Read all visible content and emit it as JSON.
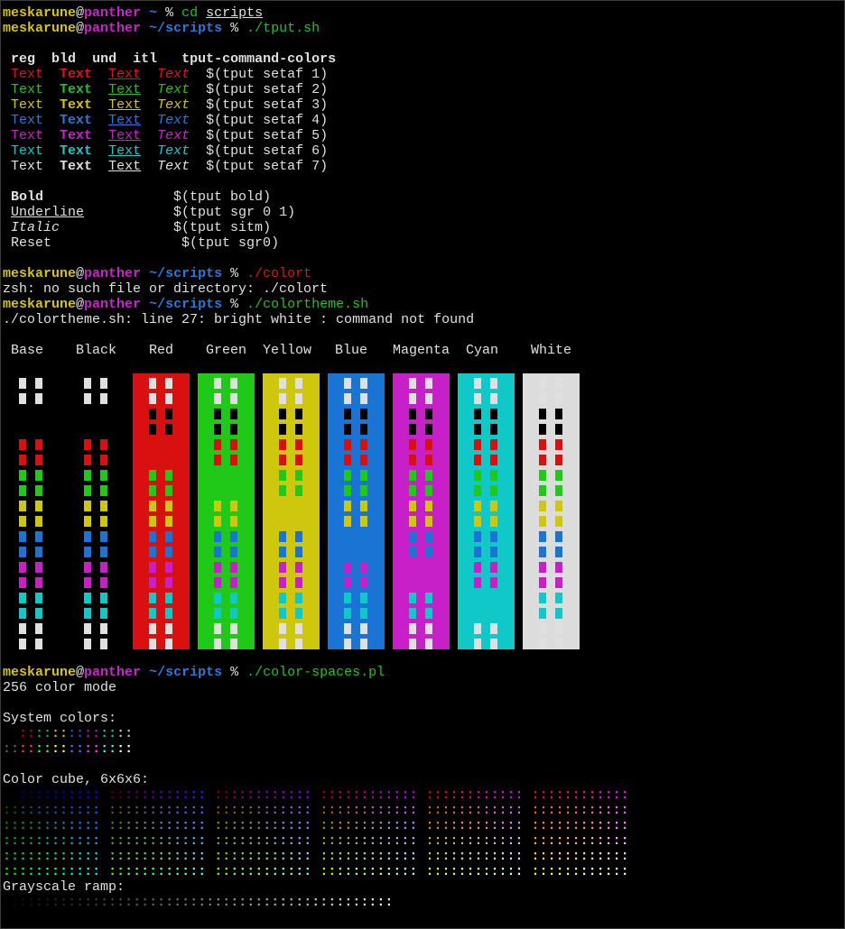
{
  "prompt": {
    "user": "meskarune",
    "at": "@",
    "host": "panther",
    "home_path": "~",
    "scripts_path": "~/scripts",
    "symbol": "%"
  },
  "commands": {
    "cd": "cd",
    "cd_arg": "scripts",
    "tput": "./tput.sh",
    "colort": "./colort",
    "colortheme": "./colortheme.sh",
    "colorspaces": "./color-spaces.pl"
  },
  "tput_table": {
    "headers": [
      "reg",
      "bld",
      "und",
      "itl",
      "tput-command-colors"
    ],
    "sample_word": "Text",
    "rows": [
      {
        "cmd": "$(tput setaf 1)",
        "color": "#d81818"
      },
      {
        "cmd": "$(tput setaf 2)",
        "color": "#24c024"
      },
      {
        "cmd": "$(tput setaf 3)",
        "color": "#d4c40c"
      },
      {
        "cmd": "$(tput setaf 4)",
        "color": "#2a78d8"
      },
      {
        "cmd": "$(tput setaf 5)",
        "color": "#c825c8"
      },
      {
        "cmd": "$(tput setaf 6)",
        "color": "#18c8c8"
      },
      {
        "cmd": "$(tput setaf 7)",
        "color": "#e0e0e0"
      }
    ],
    "styles": [
      {
        "label": "Bold",
        "cmd": "$(tput bold)"
      },
      {
        "label": "Underline",
        "cmd": "$(tput sgr 0 1)"
      },
      {
        "label": "Italic",
        "cmd": "$(tput sitm)"
      },
      {
        "label": "Reset",
        "cmd": "$(tput sgr0)"
      }
    ]
  },
  "errors": {
    "colort": "zsh: no such file or directory: ./colort",
    "colortheme": "./colortheme.sh: line 27: bright white : command not found"
  },
  "theme": {
    "columns": [
      {
        "name": "Base",
        "bg": ""
      },
      {
        "name": "Black",
        "bg": ""
      },
      {
        "name": "Red",
        "bg": "#d81010"
      },
      {
        "name": "Green",
        "bg": "#20c818"
      },
      {
        "name": "Yellow",
        "bg": "#cfc70d"
      },
      {
        "name": "Blue",
        "bg": "#1a74d4"
      },
      {
        "name": "Magenta",
        "bg": "#c820c8"
      },
      {
        "name": "Cyan",
        "bg": "#10c8c8"
      },
      {
        "name": "White",
        "bg": "#dcdcdc"
      }
    ],
    "palette": [
      "#e0e0e0",
      "#000000",
      "#d81010",
      "#20c818",
      "#cfc70d",
      "#1a74d4",
      "#c820c8",
      "#10c8c8",
      "#e0e0e0"
    ]
  },
  "spaces": {
    "mode": "256 color mode",
    "system_label": "System colors:",
    "cube_label": "Color cube, 6x6x6:",
    "gray_label": "Grayscale ramp:"
  }
}
